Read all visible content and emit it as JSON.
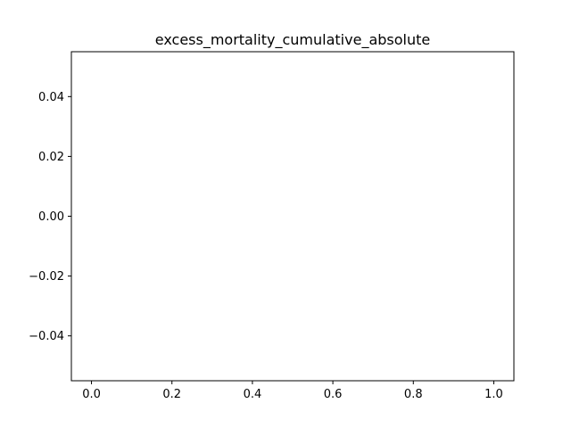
{
  "chart_data": {
    "type": "line",
    "title": "excess_mortality_cumulative_absolute",
    "xlabel": "",
    "ylabel": "",
    "series": [],
    "xlim": [
      -0.05,
      1.05
    ],
    "ylim": [
      -0.055,
      0.055
    ],
    "x_ticks": [
      {
        "value": 0.0,
        "label": "0.0"
      },
      {
        "value": 0.2,
        "label": "0.2"
      },
      {
        "value": 0.4,
        "label": "0.4"
      },
      {
        "value": 0.6,
        "label": "0.6"
      },
      {
        "value": 0.8,
        "label": "0.8"
      },
      {
        "value": 1.0,
        "label": "1.0"
      }
    ],
    "y_ticks": [
      {
        "value": 0.04,
        "label": "0.04"
      },
      {
        "value": 0.02,
        "label": "0.02"
      },
      {
        "value": 0.0,
        "label": "0.00"
      },
      {
        "value": -0.02,
        "label": "−0.02"
      },
      {
        "value": -0.04,
        "label": "−0.04"
      }
    ],
    "grid": false,
    "legend": "none"
  }
}
